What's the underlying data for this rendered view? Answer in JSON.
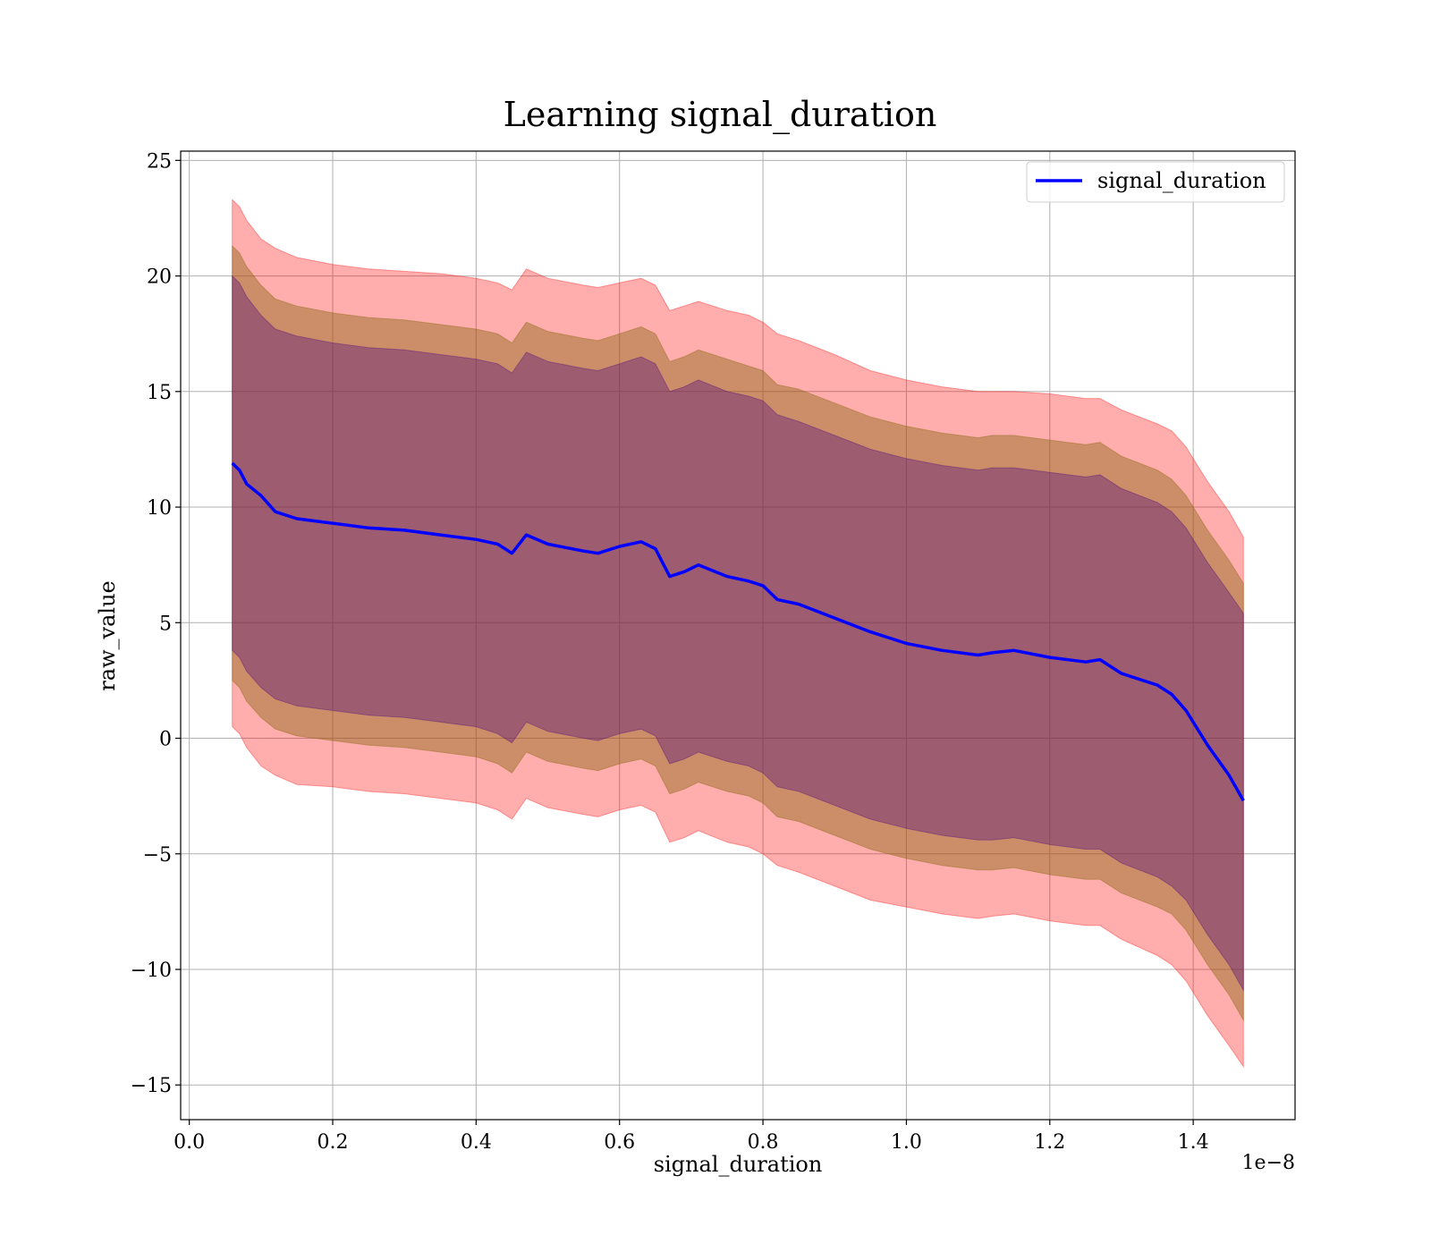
{
  "chart_data": {
    "type": "line",
    "title": "Learning signal_duration",
    "xlabel": "signal_duration",
    "ylabel": "raw_value",
    "x_offset_label": "1e−8",
    "x_scale": 1e-08,
    "xlim": [
      -0.012,
      1.542
    ],
    "ylim": [
      -16.5,
      25.4
    ],
    "xticks": [
      0.0,
      0.2,
      0.4,
      0.6,
      0.8,
      1.0,
      1.2,
      1.4
    ],
    "xtick_labels": [
      "0.0",
      "0.2",
      "0.4",
      "0.6",
      "0.8",
      "1.0",
      "1.2",
      "1.4"
    ],
    "yticks": [
      -15,
      -10,
      -5,
      0,
      5,
      10,
      15,
      20,
      25
    ],
    "ytick_labels": [
      "−15",
      "−10",
      "−5",
      "0",
      "5",
      "10",
      "15",
      "20",
      "25"
    ],
    "grid": true,
    "legend": {
      "position": "top-right",
      "entries": [
        "signal_duration"
      ]
    },
    "colors": {
      "mean_line": "#0000ff",
      "band_outer": "#ff0000",
      "band_middle": "#8b6914",
      "band_inner": "#4b0082",
      "grid": "#b0b0b0"
    },
    "series": [
      {
        "name": "signal_duration",
        "x": [
          0.06,
          0.07,
          0.08,
          0.1,
          0.12,
          0.15,
          0.2,
          0.25,
          0.3,
          0.35,
          0.4,
          0.43,
          0.45,
          0.47,
          0.5,
          0.55,
          0.57,
          0.6,
          0.63,
          0.65,
          0.67,
          0.69,
          0.71,
          0.75,
          0.78,
          0.8,
          0.82,
          0.85,
          0.9,
          0.95,
          1.0,
          1.05,
          1.1,
          1.12,
          1.15,
          1.2,
          1.25,
          1.27,
          1.3,
          1.35,
          1.37,
          1.39,
          1.42,
          1.45,
          1.47
        ],
        "mean": [
          11.9,
          11.6,
          11.0,
          10.5,
          9.8,
          9.5,
          9.3,
          9.1,
          9.0,
          8.8,
          8.6,
          8.4,
          8.0,
          8.8,
          8.4,
          8.1,
          8.0,
          8.3,
          8.5,
          8.2,
          7.0,
          7.2,
          7.5,
          7.0,
          6.8,
          6.6,
          6.0,
          5.8,
          5.2,
          4.6,
          4.1,
          3.8,
          3.6,
          3.7,
          3.8,
          3.5,
          3.3,
          3.4,
          2.8,
          2.3,
          1.9,
          1.2,
          -0.3,
          -1.6,
          -2.7
        ],
        "band_outer_upper": [
          23.3,
          23.0,
          22.4,
          21.6,
          21.2,
          20.8,
          20.5,
          20.3,
          20.2,
          20.1,
          19.9,
          19.7,
          19.4,
          20.3,
          19.9,
          19.6,
          19.5,
          19.7,
          19.9,
          19.6,
          18.5,
          18.7,
          18.9,
          18.5,
          18.3,
          18.0,
          17.5,
          17.2,
          16.6,
          15.9,
          15.5,
          15.2,
          15.0,
          15.0,
          15.0,
          14.9,
          14.7,
          14.7,
          14.2,
          13.6,
          13.3,
          12.6,
          11.1,
          9.8,
          8.7
        ],
        "band_outer_lower": [
          0.5,
          0.2,
          -0.4,
          -1.2,
          -1.6,
          -2.0,
          -2.1,
          -2.3,
          -2.4,
          -2.6,
          -2.8,
          -3.1,
          -3.5,
          -2.6,
          -3.0,
          -3.3,
          -3.4,
          -3.1,
          -2.9,
          -3.2,
          -4.5,
          -4.3,
          -4.0,
          -4.5,
          -4.7,
          -5.0,
          -5.5,
          -5.8,
          -6.4,
          -7.0,
          -7.3,
          -7.6,
          -7.8,
          -7.7,
          -7.6,
          -7.9,
          -8.1,
          -8.1,
          -8.7,
          -9.4,
          -9.8,
          -10.5,
          -12.0,
          -13.3,
          -14.2
        ],
        "band_middle_upper": [
          21.3,
          21.0,
          20.4,
          19.6,
          19.0,
          18.7,
          18.4,
          18.2,
          18.1,
          17.9,
          17.7,
          17.5,
          17.1,
          18.0,
          17.6,
          17.3,
          17.2,
          17.5,
          17.8,
          17.5,
          16.3,
          16.5,
          16.8,
          16.4,
          16.1,
          15.9,
          15.3,
          15.1,
          14.5,
          13.9,
          13.5,
          13.2,
          13.0,
          13.1,
          13.1,
          12.9,
          12.7,
          12.8,
          12.2,
          11.6,
          11.2,
          10.5,
          9.0,
          7.7,
          6.7
        ],
        "band_middle_lower": [
          2.5,
          2.2,
          1.6,
          0.9,
          0.4,
          0.1,
          -0.1,
          -0.3,
          -0.4,
          -0.6,
          -0.8,
          -1.1,
          -1.5,
          -0.6,
          -1.0,
          -1.3,
          -1.4,
          -1.1,
          -0.9,
          -1.2,
          -2.4,
          -2.2,
          -1.9,
          -2.3,
          -2.5,
          -2.8,
          -3.4,
          -3.6,
          -4.2,
          -4.8,
          -5.2,
          -5.5,
          -5.7,
          -5.7,
          -5.6,
          -5.9,
          -6.1,
          -6.1,
          -6.7,
          -7.3,
          -7.6,
          -8.3,
          -9.8,
          -11.1,
          -12.2
        ],
        "band_inner_upper": [
          20.0,
          19.7,
          19.1,
          18.3,
          17.7,
          17.4,
          17.1,
          16.9,
          16.8,
          16.6,
          16.4,
          16.2,
          15.8,
          16.7,
          16.3,
          16.0,
          15.9,
          16.2,
          16.5,
          16.2,
          15.0,
          15.2,
          15.5,
          15.0,
          14.8,
          14.6,
          14.0,
          13.7,
          13.1,
          12.5,
          12.1,
          11.8,
          11.6,
          11.7,
          11.7,
          11.5,
          11.3,
          11.4,
          10.8,
          10.2,
          9.8,
          9.1,
          7.6,
          6.3,
          5.4
        ],
        "band_inner_lower": [
          3.8,
          3.5,
          2.9,
          2.2,
          1.7,
          1.4,
          1.2,
          1.0,
          0.9,
          0.7,
          0.5,
          0.2,
          -0.2,
          0.7,
          0.3,
          0.0,
          -0.1,
          0.2,
          0.4,
          0.1,
          -1.1,
          -0.9,
          -0.6,
          -1.0,
          -1.2,
          -1.5,
          -2.1,
          -2.3,
          -2.9,
          -3.5,
          -3.9,
          -4.2,
          -4.4,
          -4.4,
          -4.3,
          -4.6,
          -4.8,
          -4.8,
          -5.4,
          -6.0,
          -6.4,
          -7.0,
          -8.5,
          -9.8,
          -10.9
        ]
      }
    ]
  }
}
